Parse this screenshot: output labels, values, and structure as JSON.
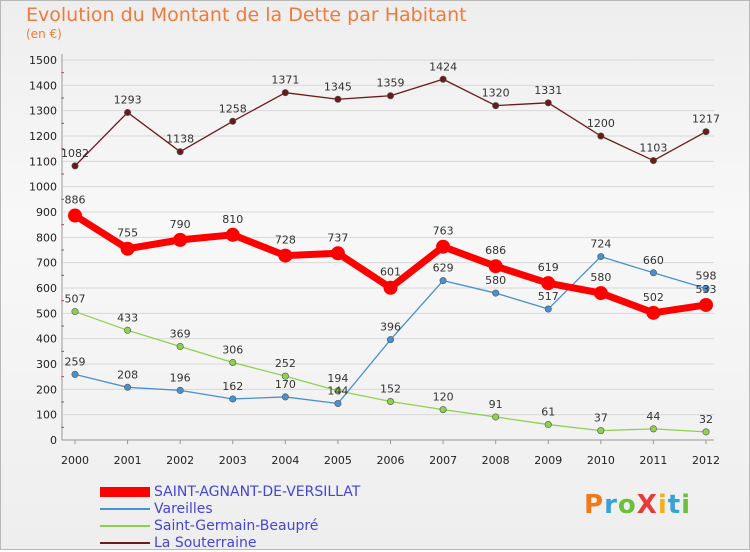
{
  "title": "Evolution du Montant de la Dette par Habitant",
  "subtitle": "(en €)",
  "logo": "ProXiti",
  "chart_data": {
    "type": "line",
    "x": [
      "2000",
      "2001",
      "2002",
      "2003",
      "2004",
      "2005",
      "2006",
      "2007",
      "2008",
      "2009",
      "2010",
      "2011",
      "2012"
    ],
    "ylim": [
      0,
      1500
    ],
    "yticks": [
      0,
      100,
      200,
      300,
      400,
      500,
      600,
      700,
      800,
      900,
      1000,
      1100,
      1200,
      1300,
      1400,
      1500
    ],
    "legend_position": "bottom-left",
    "series": [
      {
        "name": "SAINT-AGNANT-DE-VERSILLAT",
        "color": "#ff0000",
        "values": [
          886,
          755,
          790,
          810,
          728,
          737,
          601,
          763,
          686,
          619,
          580,
          502,
          533
        ],
        "labels": [
          "886",
          "755",
          "790",
          "810",
          "728",
          "737",
          "601",
          "763",
          "686",
          "619",
          "580",
          "502",
          "533"
        ]
      },
      {
        "name": "Vareilles",
        "color": "#4a8fcf",
        "values": [
          259,
          208,
          196,
          162,
          170,
          144,
          396,
          629,
          580,
          517,
          724,
          660,
          598
        ],
        "labels": [
          "259",
          "208",
          "196",
          "162",
          "170",
          "144",
          "396",
          "629",
          "580",
          "517",
          "724",
          "660",
          "598"
        ]
      },
      {
        "name": "Saint-Germain-Beaupré",
        "color": "#8fd14f",
        "values": [
          507,
          433,
          369,
          306,
          252,
          194,
          152,
          120,
          91,
          61,
          37,
          44,
          32
        ],
        "labels": [
          "507",
          "433",
          "369",
          "306",
          "252",
          "194",
          "152",
          "120",
          "91",
          "61",
          "37",
          "44",
          "32"
        ]
      },
      {
        "name": "La Souterraine",
        "color": "#6b1a1a",
        "values": [
          1082,
          1293,
          1138,
          1258,
          1371,
          1345,
          1359,
          1424,
          1320,
          1331,
          1200,
          1103,
          1217
        ],
        "labels": [
          "1082",
          "1293",
          "1138",
          "1258",
          "1371",
          "1345",
          "1359",
          "1424",
          "1320",
          "1331",
          "1200",
          "1103",
          "1217"
        ]
      }
    ]
  }
}
